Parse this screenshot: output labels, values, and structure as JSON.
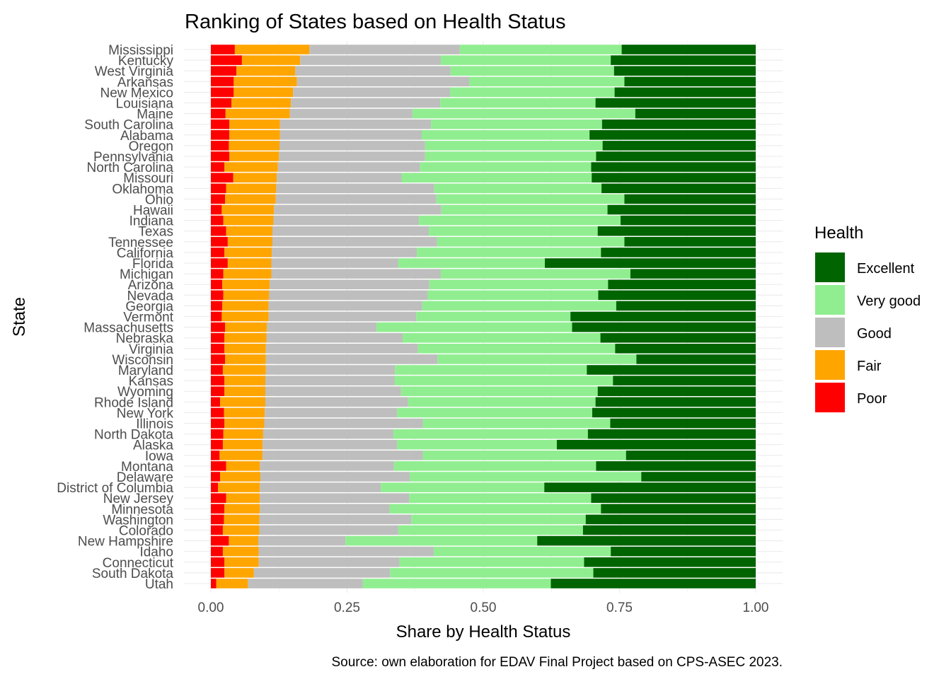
{
  "chart_data": {
    "type": "bar",
    "orientation": "horizontal",
    "stacked": true,
    "title": "Ranking of States based on Health Status",
    "xlabel": "Share by Health Status",
    "ylabel": "State",
    "caption": "Source: own elaboration for EDAV Final Project based on CPS-ASEC 2023.",
    "xlim": [
      0,
      1
    ],
    "xticks": [
      0,
      0.25,
      0.5,
      0.75,
      1.0
    ],
    "xtick_labels": [
      "0.00",
      "0.25",
      "0.50",
      "0.75",
      "1.00"
    ],
    "grid": true,
    "legend": {
      "title": "Health",
      "position": "right",
      "entries": [
        "Excellent",
        "Very good",
        "Good",
        "Fair",
        "Poor"
      ]
    },
    "colors": {
      "Poor": "#ff0000",
      "Fair": "#ffa500",
      "Good": "#bebebe",
      "Very good": "#90ee90",
      "Excellent": "#006400"
    },
    "stack_order": [
      "Poor",
      "Fair",
      "Good",
      "Very good",
      "Excellent"
    ],
    "categories": [
      "Mississippi",
      "Kentucky",
      "West Virginia",
      "Arkansas",
      "New Mexico",
      "Louisiana",
      "Maine",
      "South Carolina",
      "Alabama",
      "Oregon",
      "Pennsylvania",
      "North Carolina",
      "Missouri",
      "Oklahoma",
      "Ohio",
      "Hawaii",
      "Indiana",
      "Texas",
      "Tennessee",
      "California",
      "Florida",
      "Michigan",
      "Arizona",
      "Nevada",
      "Georgia",
      "Vermont",
      "Massachusetts",
      "Nebraska",
      "Virginia",
      "Wisconsin",
      "Maryland",
      "Kansas",
      "Wyoming",
      "Rhode Island",
      "New York",
      "Illinois",
      "North Dakota",
      "Alaska",
      "Iowa",
      "Montana",
      "Delaware",
      "District of Columbia",
      "New Jersey",
      "Minnesota",
      "Washington",
      "Colorado",
      "New Hampshire",
      "Idaho",
      "Connecticut",
      "South Dakota",
      "Utah"
    ],
    "series": [
      {
        "name": "Poor",
        "values": [
          0.044,
          0.057,
          0.047,
          0.042,
          0.042,
          0.038,
          0.027,
          0.034,
          0.034,
          0.033,
          0.034,
          0.025,
          0.041,
          0.028,
          0.026,
          0.02,
          0.023,
          0.028,
          0.031,
          0.025,
          0.031,
          0.023,
          0.021,
          0.023,
          0.021,
          0.02,
          0.026,
          0.025,
          0.025,
          0.026,
          0.022,
          0.025,
          0.025,
          0.017,
          0.024,
          0.025,
          0.023,
          0.022,
          0.016,
          0.028,
          0.017,
          0.013,
          0.028,
          0.025,
          0.024,
          0.022,
          0.033,
          0.022,
          0.025,
          0.025,
          0.01
        ]
      },
      {
        "name": "Fair",
        "values": [
          0.137,
          0.107,
          0.108,
          0.116,
          0.109,
          0.109,
          0.118,
          0.093,
          0.093,
          0.093,
          0.091,
          0.098,
          0.08,
          0.092,
          0.093,
          0.096,
          0.092,
          0.085,
          0.082,
          0.087,
          0.08,
          0.088,
          0.087,
          0.084,
          0.085,
          0.086,
          0.077,
          0.077,
          0.076,
          0.075,
          0.079,
          0.075,
          0.075,
          0.083,
          0.075,
          0.073,
          0.073,
          0.073,
          0.079,
          0.062,
          0.074,
          0.077,
          0.062,
          0.065,
          0.065,
          0.067,
          0.054,
          0.066,
          0.063,
          0.054,
          0.058
        ]
      },
      {
        "name": "Good",
        "values": [
          0.276,
          0.258,
          0.285,
          0.316,
          0.288,
          0.274,
          0.225,
          0.277,
          0.26,
          0.267,
          0.268,
          0.261,
          0.229,
          0.29,
          0.295,
          0.307,
          0.267,
          0.287,
          0.302,
          0.266,
          0.233,
          0.311,
          0.293,
          0.291,
          0.282,
          0.271,
          0.201,
          0.25,
          0.279,
          0.315,
          0.237,
          0.237,
          0.249,
          0.262,
          0.243,
          0.291,
          0.239,
          0.247,
          0.294,
          0.246,
          0.274,
          0.222,
          0.274,
          0.238,
          0.279,
          0.255,
          0.16,
          0.321,
          0.258,
          0.25,
          0.211
        ]
      },
      {
        "name": "Very good",
        "values": [
          0.297,
          0.312,
          0.3,
          0.285,
          0.302,
          0.285,
          0.409,
          0.314,
          0.308,
          0.326,
          0.314,
          0.314,
          0.349,
          0.307,
          0.345,
          0.305,
          0.37,
          0.31,
          0.344,
          0.338,
          0.269,
          0.348,
          0.328,
          0.313,
          0.356,
          0.283,
          0.359,
          0.363,
          0.362,
          0.365,
          0.352,
          0.401,
          0.361,
          0.344,
          0.358,
          0.344,
          0.357,
          0.293,
          0.373,
          0.371,
          0.425,
          0.3,
          0.334,
          0.388,
          0.32,
          0.339,
          0.352,
          0.325,
          0.339,
          0.373,
          0.345
        ]
      },
      {
        "name": "Excellent",
        "values": [
          0.246,
          0.266,
          0.26,
          0.241,
          0.259,
          0.294,
          0.221,
          0.282,
          0.305,
          0.281,
          0.293,
          0.302,
          0.301,
          0.283,
          0.241,
          0.272,
          0.248,
          0.29,
          0.241,
          0.284,
          0.387,
          0.23,
          0.271,
          0.289,
          0.256,
          0.34,
          0.337,
          0.285,
          0.258,
          0.219,
          0.31,
          0.262,
          0.29,
          0.294,
          0.3,
          0.267,
          0.308,
          0.365,
          0.238,
          0.293,
          0.21,
          0.388,
          0.302,
          0.284,
          0.312,
          0.317,
          0.401,
          0.266,
          0.315,
          0.298,
          0.376
        ]
      }
    ]
  }
}
